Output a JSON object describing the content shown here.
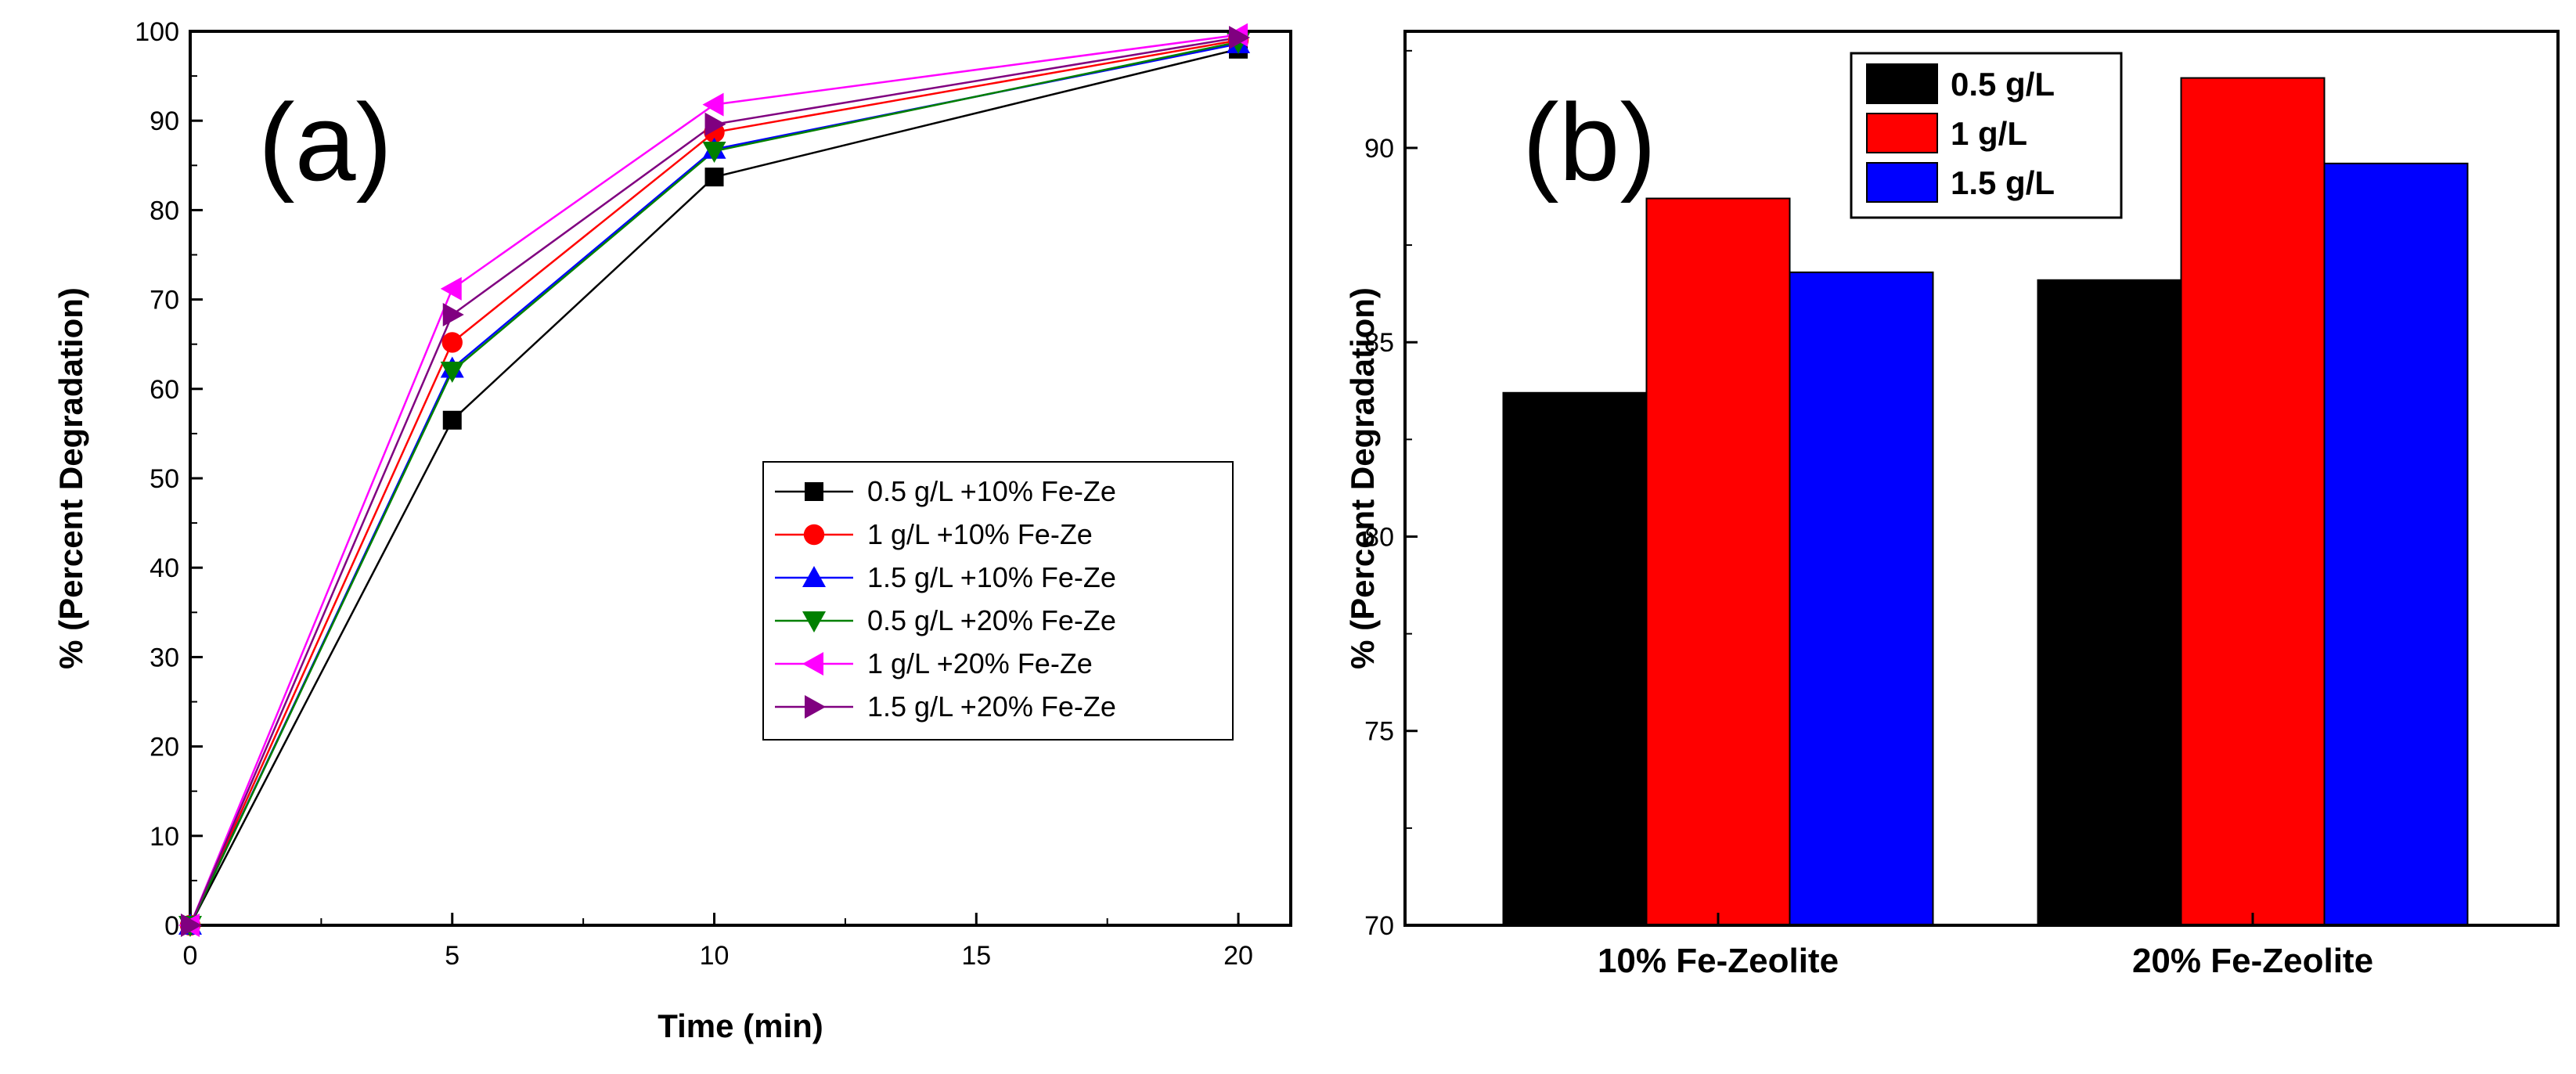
{
  "chart_data": [
    {
      "panel_label": "(a)",
      "type": "line",
      "xlabel": "Time (min)",
      "ylabel": "% (Percent Degradation)",
      "xlim": [
        0,
        21
      ],
      "ylim": [
        0,
        100
      ],
      "xticks": [
        0,
        5,
        10,
        15,
        20
      ],
      "yticks": [
        0,
        10,
        20,
        30,
        40,
        50,
        60,
        70,
        80,
        90,
        100
      ],
      "x": [
        0,
        5,
        10,
        20
      ],
      "legend_position": "center-right",
      "series": [
        {
          "name": "0.5 g/L +10% Fe-Ze",
          "values": [
            0,
            56.5,
            83.7,
            98.0
          ],
          "color": "#000000",
          "marker": "square"
        },
        {
          "name": "1 g/L +10% Fe-Ze",
          "values": [
            0,
            65.2,
            88.7,
            99.0
          ],
          "color": "#ff0000",
          "marker": "circle"
        },
        {
          "name": "1.5 g/L +10% Fe-Ze",
          "values": [
            0,
            62.3,
            86.8,
            98.6
          ],
          "color": "#0000ff",
          "marker": "triangle-up"
        },
        {
          "name": "0.5 g/L +20% Fe-Ze",
          "values": [
            0,
            62.0,
            86.6,
            98.8
          ],
          "color": "#008000",
          "marker": "triangle-down"
        },
        {
          "name": "1 g/L +20% Fe-Ze",
          "values": [
            0,
            71.2,
            91.8,
            99.6
          ],
          "color": "#ff00ff",
          "marker": "triangle-left"
        },
        {
          "name": "1.5 g/L +20% Fe-Ze",
          "values": [
            0,
            68.3,
            89.6,
            99.3
          ],
          "color": "#800080",
          "marker": "triangle-right"
        }
      ]
    },
    {
      "panel_label": "(b)",
      "type": "bar",
      "xlabel": "",
      "ylabel": "% (Percent Degradation)",
      "ylim": [
        70,
        93
      ],
      "yticks": [
        70,
        75,
        80,
        85,
        90
      ],
      "categories": [
        "10% Fe-Zeolite",
        "20% Fe-Zeolite"
      ],
      "legend_position": "top-center",
      "series": [
        {
          "name": "0.5 g/L",
          "values": [
            83.7,
            86.6
          ],
          "color": "#000000"
        },
        {
          "name": "1 g/L",
          "values": [
            88.7,
            91.8
          ],
          "color": "#ff0000"
        },
        {
          "name": "1.5 g/L",
          "values": [
            86.8,
            89.6
          ],
          "color": "#0000ff"
        }
      ]
    }
  ]
}
